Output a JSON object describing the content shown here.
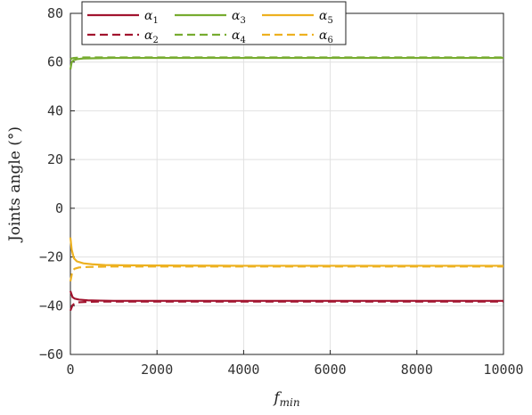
{
  "chart_data": {
    "type": "line",
    "xlabel": "f",
    "xlabel_sub": "min",
    "ylabel": "Joints angle (°)",
    "xlim": [
      0,
      10000
    ],
    "ylim": [
      -60,
      80
    ],
    "x_ticks": [
      "0",
      "2000",
      "4000",
      "6000",
      "8000",
      "10000"
    ],
    "y_ticks": [
      "80",
      "60",
      "40",
      "20",
      "0",
      "−20",
      "−40",
      "−60"
    ],
    "grid": true,
    "legend_placement": "top-left",
    "series": [
      {
        "name": "α",
        "sub": "1",
        "color": "#a2142f",
        "dash": "solid",
        "x": [
          0,
          50,
          100,
          200,
          400,
          700,
          1000,
          2000,
          4000,
          6000,
          8000,
          10000
        ],
        "y": [
          -34,
          -36.5,
          -37.1,
          -37.5,
          -37.8,
          -37.9,
          -38.0,
          -38.0,
          -38.0,
          -38.0,
          -38.0,
          -38.0
        ]
      },
      {
        "name": "α",
        "sub": "2",
        "color": "#a2142f",
        "dash": "dashed",
        "x": [
          0,
          50,
          100,
          200,
          400,
          700,
          1000,
          2000,
          4000,
          6000,
          8000,
          10000
        ],
        "y": [
          -42,
          -39.8,
          -39.0,
          -38.6,
          -38.4,
          -38.3,
          -38.3,
          -38.3,
          -38.3,
          -38.3,
          -38.3,
          -38.3
        ]
      },
      {
        "name": "α",
        "sub": "3",
        "color": "#77ac30",
        "dash": "solid",
        "x": [
          0,
          30,
          80,
          150,
          300,
          600,
          1000,
          2000,
          4000,
          6000,
          8000,
          10000
        ],
        "y": [
          57,
          60.0,
          60.8,
          61.2,
          61.5,
          61.6,
          61.7,
          61.7,
          61.7,
          61.7,
          61.7,
          61.7
        ]
      },
      {
        "name": "α",
        "sub": "4",
        "color": "#77ac30",
        "dash": "dashed",
        "x": [
          0,
          30,
          80,
          150,
          300,
          600,
          1000,
          2000,
          4000,
          6000,
          8000,
          10000
        ],
        "y": [
          61,
          61.5,
          61.7,
          61.8,
          61.9,
          61.9,
          61.9,
          61.9,
          61.9,
          61.9,
          61.9,
          61.9
        ]
      },
      {
        "name": "α",
        "sub": "5",
        "color": "#edb120",
        "dash": "solid",
        "x": [
          0,
          30,
          80,
          150,
          300,
          500,
          800,
          1200,
          2000,
          4000,
          6000,
          8000,
          10000
        ],
        "y": [
          -12,
          -17,
          -20.5,
          -21.8,
          -22.6,
          -23.0,
          -23.3,
          -23.4,
          -23.5,
          -23.6,
          -23.6,
          -23.6,
          -23.6
        ]
      },
      {
        "name": "α",
        "sub": "6",
        "color": "#edb120",
        "dash": "dashed",
        "x": [
          0,
          50,
          100,
          200,
          400,
          700,
          1000,
          2000,
          4000,
          6000,
          8000,
          10000
        ],
        "y": [
          -30,
          -25.5,
          -24.8,
          -24.3,
          -24.1,
          -24.0,
          -23.9,
          -23.9,
          -23.9,
          -23.9,
          -23.9,
          -23.9
        ]
      }
    ]
  }
}
